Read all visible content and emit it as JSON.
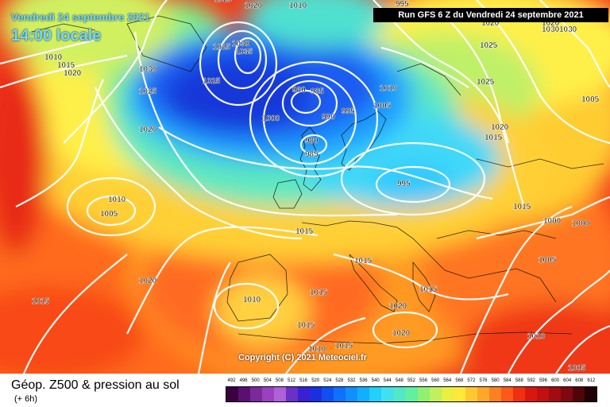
{
  "header": {
    "date": "Vendredi 24 septembre 2021",
    "time": "14:00 locale",
    "run": "Run GFS 6 Z du Vendredi 24 septembre 2021"
  },
  "copyright": "Copyright (C) 2021 Meteociel.fr",
  "footer": {
    "title": "Géop. Z500 & pression au sol",
    "subtitle": "(+ 6h)"
  },
  "legend": {
    "values": [
      "492",
      "496",
      "500",
      "504",
      "508",
      "512",
      "516",
      "520",
      "524",
      "528",
      "532",
      "536",
      "540",
      "544",
      "548",
      "552",
      "556",
      "560",
      "564",
      "568",
      "572",
      "576",
      "580",
      "584",
      "588",
      "592",
      "596",
      "600",
      "604",
      "608",
      "612"
    ],
    "colors": [
      "#3a0040",
      "#5a1070",
      "#7a2a9a",
      "#9a40c0",
      "#b060d8",
      "#6a30c8",
      "#3a20d0",
      "#1a30e0",
      "#1050f0",
      "#1070ff",
      "#1090ff",
      "#10b0ff",
      "#20d0ff",
      "#40e0f0",
      "#50e8c8",
      "#60f0a0",
      "#90f070",
      "#c0f060",
      "#e8f040",
      "#ffe838",
      "#ffc830",
      "#ffa828",
      "#ff8020",
      "#ff5818",
      "#f03010",
      "#d81810",
      "#c01010",
      "#a00c10",
      "#800810",
      "#500408",
      "#200004"
    ]
  },
  "pressure_labels": [
    "1020",
    "1010",
    "1015",
    "1020",
    "1030",
    "1025",
    "1020",
    "1035",
    "1025",
    "1030",
    "1025",
    "1020",
    "1010",
    "1005",
    "1020",
    "1015",
    "1015",
    "1010",
    "1015",
    "1010",
    "1015",
    "1020",
    "1015",
    "1020",
    "1005",
    "1005",
    "1025",
    "1025",
    "1030",
    "1030",
    "1020",
    "1015",
    "1015",
    "1000",
    "1000",
    "980",
    "985",
    "1000",
    "990",
    "995",
    "980",
    "985",
    "995",
    "1010",
    "1005",
    "1015",
    "1015",
    "1020",
    "1020",
    "1010",
    "1010",
    "1005",
    "995"
  ]
}
